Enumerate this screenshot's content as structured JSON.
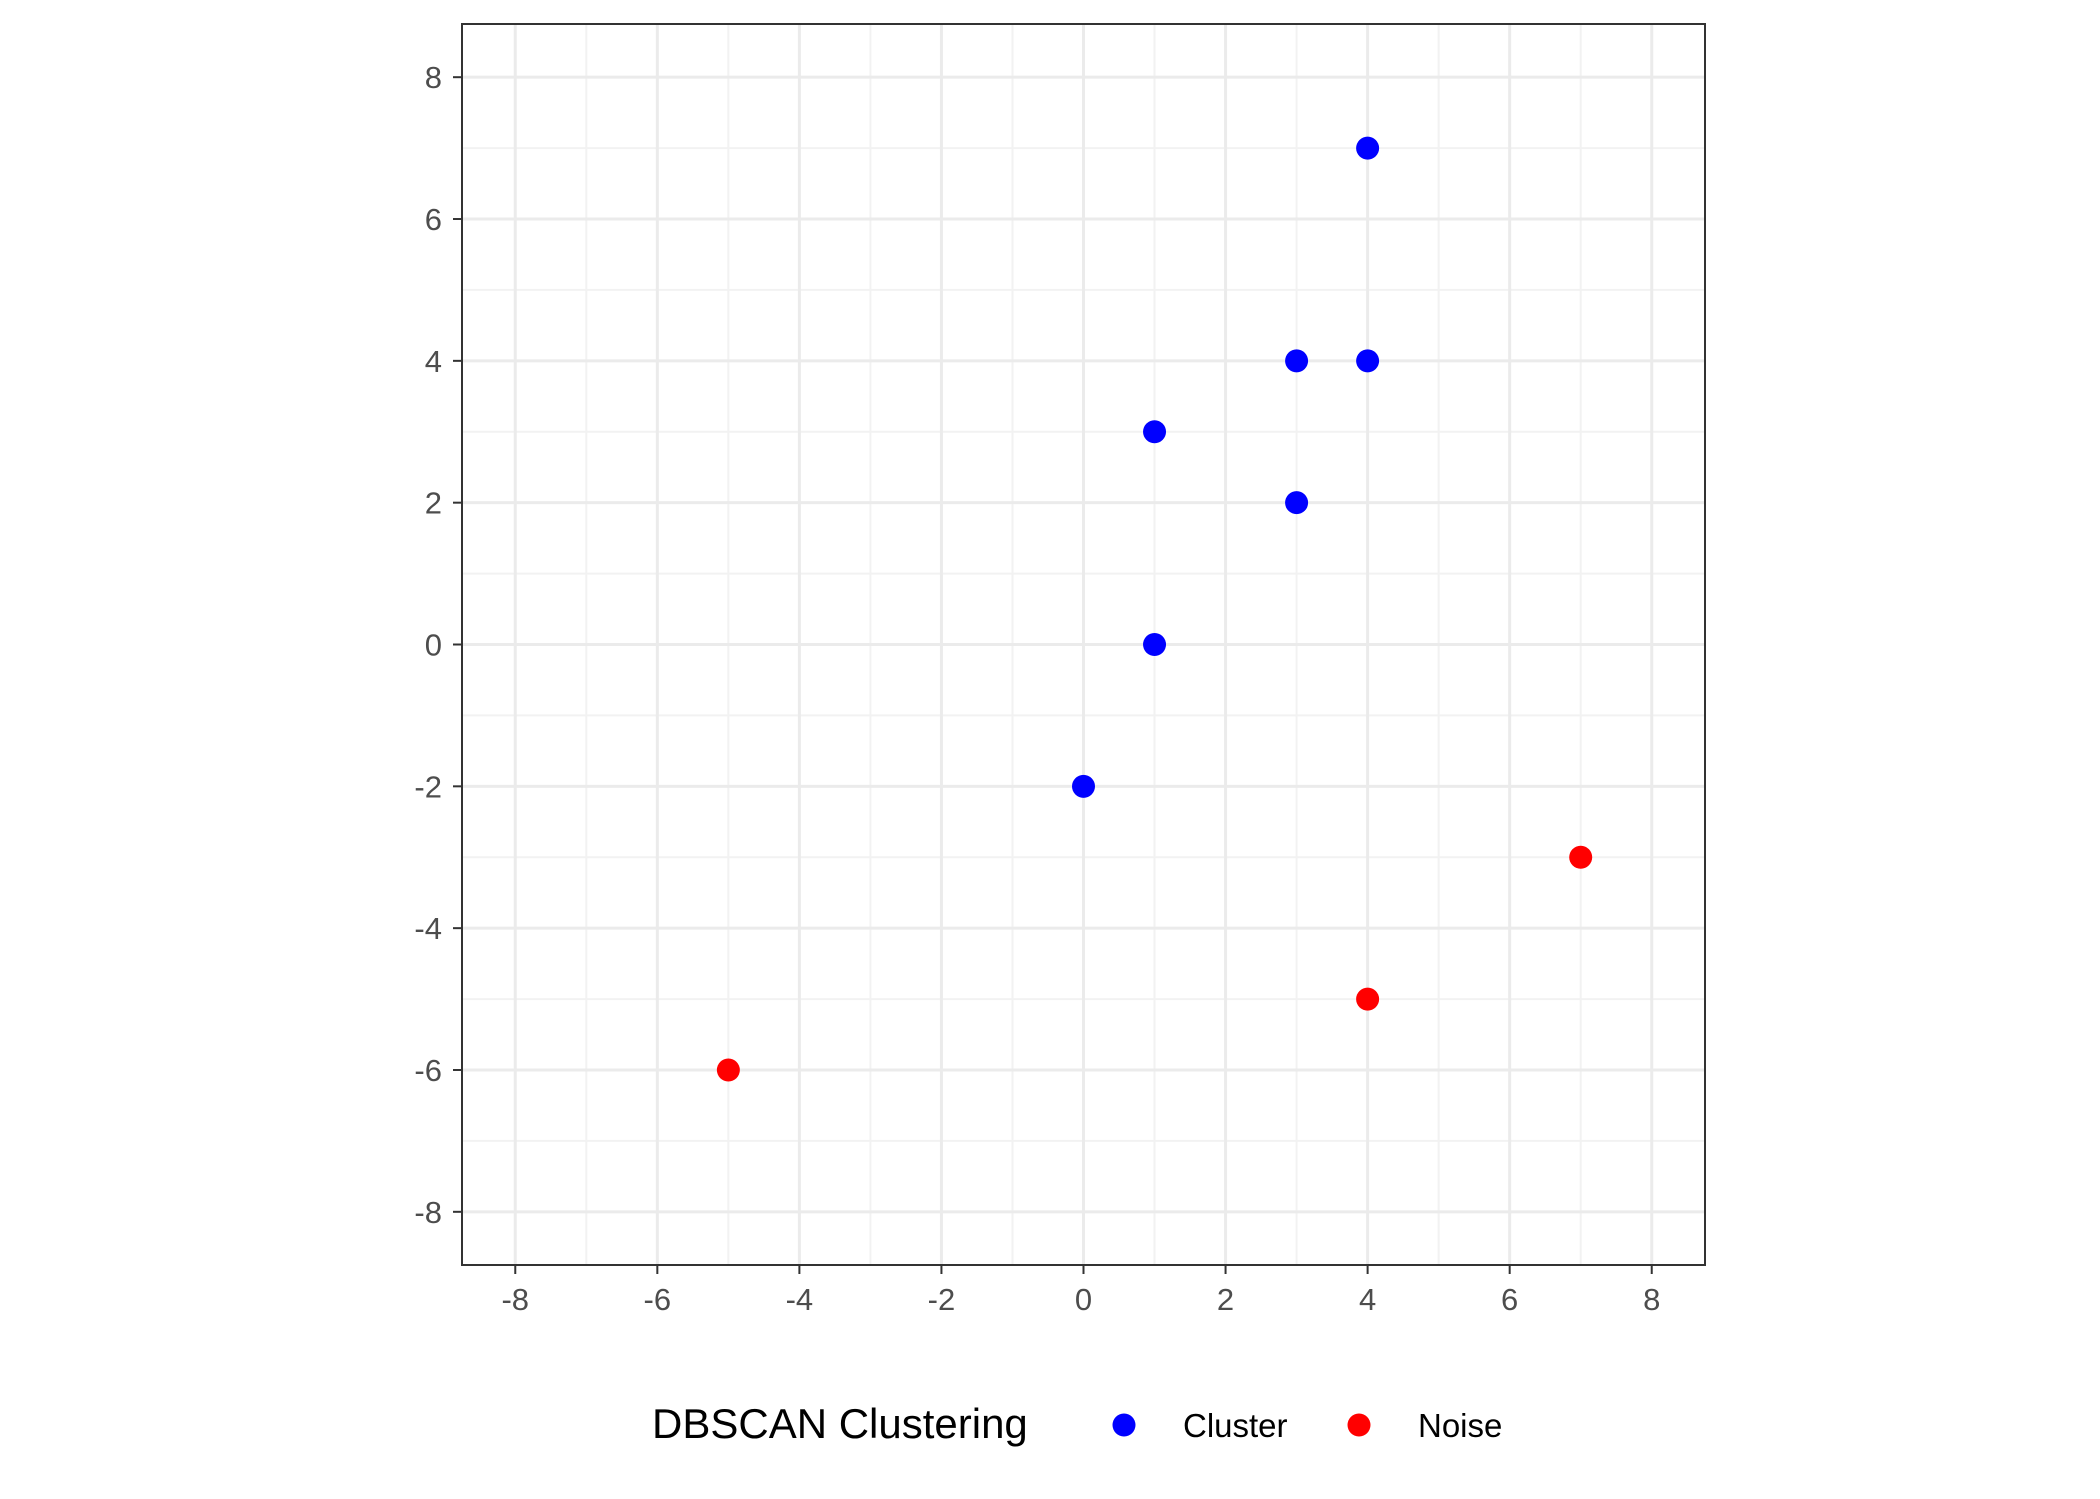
{
  "chart_data": {
    "type": "scatter",
    "title": "",
    "xlabel": "",
    "ylabel": "",
    "xlim": [
      -8.75,
      8.75
    ],
    "ylim": [
      -8.75,
      8.75
    ],
    "x_ticks": [
      -8,
      -6,
      -4,
      -2,
      0,
      2,
      4,
      6,
      8
    ],
    "y_ticks": [
      -8,
      -6,
      -4,
      -2,
      0,
      2,
      4,
      6,
      8
    ],
    "x_tick_labels": [
      "-8",
      "-6",
      "-4",
      "-2",
      "0",
      "2",
      "4",
      "6",
      "8"
    ],
    "y_tick_labels": [
      "-8",
      "-6",
      "-4",
      "-2",
      "0",
      "2",
      "4",
      "6",
      "8"
    ],
    "grid": true,
    "legend": {
      "title": "DBSCAN Clustering",
      "placement": "bottom",
      "entries": [
        {
          "label": "Cluster",
          "color": "#0000ff"
        },
        {
          "label": "Noise",
          "color": "#ff0000"
        }
      ]
    },
    "series": [
      {
        "name": "Cluster",
        "color": "#0000ff",
        "points": [
          {
            "x": 4,
            "y": 7
          },
          {
            "x": 3,
            "y": 4
          },
          {
            "x": 4,
            "y": 4
          },
          {
            "x": 1,
            "y": 3
          },
          {
            "x": 3,
            "y": 2
          },
          {
            "x": 1,
            "y": 0
          },
          {
            "x": 0,
            "y": -2
          }
        ]
      },
      {
        "name": "Noise",
        "color": "#ff0000",
        "points": [
          {
            "x": 7,
            "y": -3
          },
          {
            "x": 4,
            "y": -5
          },
          {
            "x": -5,
            "y": -6
          }
        ]
      }
    ]
  }
}
